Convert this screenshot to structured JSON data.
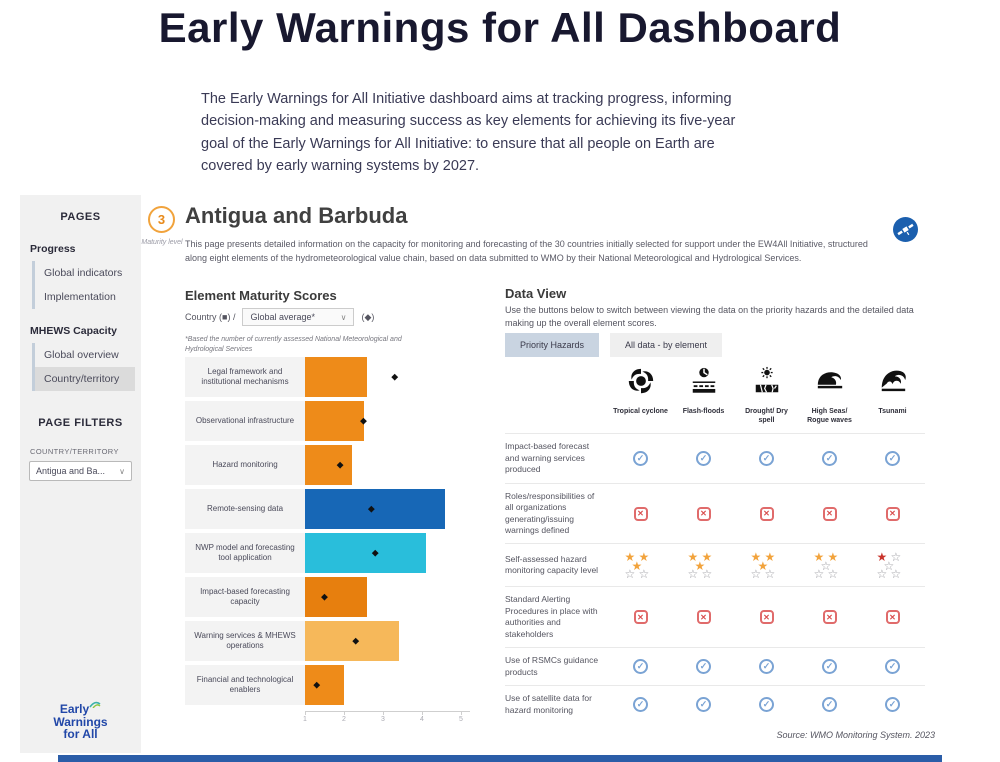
{
  "page": {
    "title": "Early Warnings for All Dashboard",
    "intro": "The Early Warnings for All Initiative dashboard aims at tracking progress, informing decision-making and measuring success as key elements for achieving its five-year goal of the Early Warnings for All Initiative: to ensure that all people on Earth are covered by early warning systems by 2027."
  },
  "sidebar": {
    "pages_header": "PAGES",
    "groups": [
      {
        "label": "Progress",
        "items": [
          {
            "label": "Global indicators",
            "selected": false
          },
          {
            "label": "Implementation",
            "selected": false
          }
        ]
      },
      {
        "label": "MHEWS Capacity",
        "items": [
          {
            "label": "Global overview",
            "selected": false
          },
          {
            "label": "Country/territory",
            "selected": true
          }
        ]
      }
    ],
    "filters_header": "PAGE FILTERS",
    "filter_label": "COUNTRY/TERRITORY",
    "filter_value": "Antigua and Ba...",
    "logo_lines": [
      "Early",
      "Warnings",
      "for All"
    ]
  },
  "header": {
    "maturity_value": "3",
    "maturity_label": "Maturity level",
    "country": "Antigua and Barbuda",
    "description": "This page presents detailed information on the capacity for monitoring and forecasting of the 30 countries initially selected for support under the EW4All Initiative, structured along eight elements of the hydrometeorological value chain, based on data submitted to WMO by their National Meteorological and Hydrological Services."
  },
  "chart_data": {
    "type": "bar",
    "title": "Element Maturity Scores",
    "legend": {
      "country_label": "Country (■) /",
      "dropdown_value": "Global average*",
      "average_marker": "(◆)"
    },
    "footnote": "*Based the number of currently assessed National Meteorological and Hydrological Services",
    "categories": [
      "Legal framework and institutional mechanisms",
      "Observational infrastructure",
      "Hazard monitoring",
      "Remote-sensing data",
      "NWP model and forecasting tool application",
      "Impact-based forecasting capacity",
      "Warning services & MHEWS operations",
      "Financial and technological enablers"
    ],
    "series": [
      {
        "name": "Country (Antigua and Barbuda)",
        "values": [
          2.6,
          2.5,
          2.2,
          4.6,
          4.1,
          2.6,
          3.4,
          2.0
        ]
      },
      {
        "name": "Global average",
        "values": [
          3.3,
          2.5,
          1.9,
          2.7,
          2.8,
          1.5,
          2.3,
          1.3
        ]
      }
    ],
    "bar_colors": [
      "#EE8B19",
      "#EE8B19",
      "#EE8B19",
      "#1767B6",
      "#29BEDB",
      "#E77F0E",
      "#F6B85A",
      "#EE8B19"
    ],
    "xlim": [
      1,
      5
    ],
    "x_ticks": [
      1,
      2,
      3,
      4,
      5
    ],
    "grid": false,
    "orientation": "horizontal"
  },
  "data_view": {
    "title": "Data View",
    "description": "Use the buttons below to switch between viewing the data on the priority hazards and the detailed data making up the overall element scores.",
    "buttons": [
      {
        "label": "Priority Hazards",
        "selected": true
      },
      {
        "label": "All data - by element",
        "selected": false
      }
    ],
    "hazards": [
      {
        "label": "Tropical cyclone",
        "icon": "cyclone-icon"
      },
      {
        "label": "Flash-floods",
        "icon": "flash-flood-icon"
      },
      {
        "label": "Drought/ Dry spell",
        "icon": "drought-icon"
      },
      {
        "label": "High Seas/ Rogue waves",
        "icon": "high-seas-icon"
      },
      {
        "label": "Tsunami",
        "icon": "tsunami-icon"
      }
    ],
    "rows": [
      {
        "label": "Impact-based forecast and warning services produced",
        "type": "status",
        "values": [
          "yes",
          "yes",
          "yes",
          "yes",
          "yes"
        ]
      },
      {
        "label": "Roles/responsibilities of all organizations generating/issuing warnings defined",
        "type": "status",
        "values": [
          "no",
          "no",
          "no",
          "no",
          "no"
        ]
      },
      {
        "label": "Self-assessed hazard monitoring capacity level",
        "type": "stars",
        "values": [
          3,
          3,
          3,
          2,
          1
        ],
        "star_colors": [
          "orange",
          "orange",
          "orange",
          "orange",
          "red"
        ],
        "max_stars": 5
      },
      {
        "label": "Standard Alerting Procedures in place with authorities and stakeholders",
        "type": "status",
        "values": [
          "no",
          "no",
          "no",
          "no",
          "no"
        ]
      },
      {
        "label": "Use of RSMCs guidance products",
        "type": "status",
        "values": [
          "yes",
          "yes",
          "yes",
          "yes",
          "yes"
        ]
      },
      {
        "label": "Use of satellite data for hazard monitoring",
        "type": "status",
        "values": [
          "yes",
          "yes",
          "yes",
          "yes",
          "yes"
        ]
      }
    ],
    "source": "Source: WMO Monitoring System. 2023"
  },
  "colors": {
    "accent_orange": "#EE8B19",
    "accent_blue": "#1767B6",
    "accent_cyan": "#29BEDB",
    "check_blue": "#7AA3D4",
    "cross_red": "#E06B6B",
    "star_orange": "#F2A33C",
    "star_red": "#C9342C",
    "footer_blue": "#2B5DA8"
  }
}
